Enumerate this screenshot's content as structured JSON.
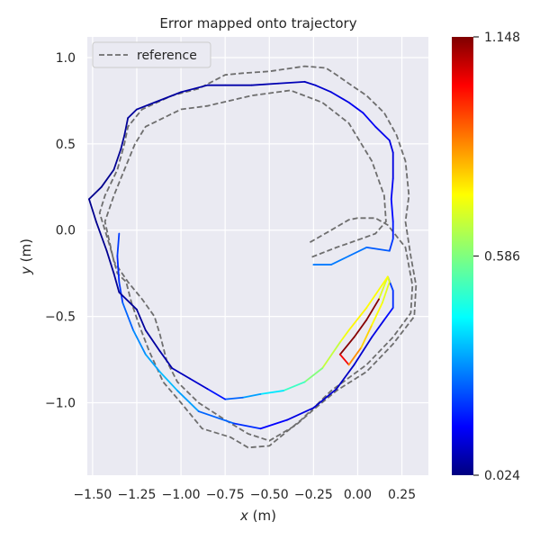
{
  "chart_data": {
    "type": "line",
    "title": "Error mapped onto trajectory",
    "xlabel_var": "x",
    "xlabel_unit": " (m)",
    "ylabel_var": "y",
    "ylabel_unit": " (m)",
    "xlim": [
      -1.53,
      0.4
    ],
    "ylim": [
      -1.42,
      1.12
    ],
    "xticks": [
      -1.5,
      -1.25,
      -1.0,
      -0.75,
      -0.5,
      -0.25,
      0.0,
      0.25
    ],
    "xtick_labels": [
      "−1.50",
      "−1.25",
      "−1.00",
      "−0.75",
      "−0.50",
      "−0.25",
      "0.00",
      "0.25"
    ],
    "yticks": [
      1.0,
      0.5,
      0.0,
      -0.5,
      -1.0
    ],
    "ytick_labels": [
      "1.0",
      "0.5",
      "0.0",
      "−0.5",
      "−1.0"
    ],
    "grid": true,
    "legend": {
      "position": "top-left",
      "entries": [
        "reference"
      ]
    },
    "reference": {
      "name": "reference",
      "style": "dashed",
      "color": "#6e6e6e",
      "points": [
        [
          -0.27,
          -0.07
        ],
        [
          -0.15,
          0.0
        ],
        [
          -0.05,
          0.06
        ],
        [
          0.0,
          0.07
        ],
        [
          0.1,
          0.07
        ],
        [
          0.17,
          0.03
        ],
        [
          0.27,
          -0.1
        ],
        [
          0.31,
          -0.32
        ],
        [
          0.3,
          -0.48
        ],
        [
          0.2,
          -0.62
        ],
        [
          0.05,
          -0.78
        ],
        [
          -0.15,
          -0.93
        ],
        [
          -0.32,
          -1.1
        ],
        [
          -0.5,
          -1.25
        ],
        [
          -0.62,
          -1.26
        ],
        [
          -0.72,
          -1.2
        ],
        [
          -0.88,
          -1.15
        ],
        [
          -1.0,
          -1.0
        ],
        [
          -1.1,
          -0.88
        ],
        [
          -1.18,
          -0.7
        ],
        [
          -1.24,
          -0.54
        ],
        [
          -1.28,
          -0.42
        ],
        [
          -1.31,
          -0.3
        ],
        [
          -1.36,
          -0.25
        ],
        [
          -1.4,
          -0.1
        ],
        [
          -1.46,
          0.1
        ],
        [
          -1.43,
          0.2
        ],
        [
          -1.36,
          0.35
        ],
        [
          -1.32,
          0.5
        ],
        [
          -1.3,
          0.6
        ],
        [
          -1.22,
          0.7
        ],
        [
          -1.05,
          0.78
        ],
        [
          -0.9,
          0.82
        ],
        [
          -0.75,
          0.9
        ],
        [
          -0.65,
          0.91
        ],
        [
          -0.5,
          0.92
        ],
        [
          -0.3,
          0.95
        ],
        [
          -0.18,
          0.94
        ],
        [
          -0.12,
          0.9
        ],
        [
          -0.05,
          0.85
        ],
        [
          0.05,
          0.78
        ],
        [
          0.15,
          0.68
        ],
        [
          0.22,
          0.55
        ],
        [
          0.27,
          0.4
        ],
        [
          0.29,
          0.2
        ],
        [
          0.27,
          0.05
        ],
        [
          0.3,
          -0.15
        ],
        [
          0.33,
          -0.32
        ],
        [
          0.32,
          -0.5
        ],
        [
          0.2,
          -0.66
        ],
        [
          0.05,
          -0.82
        ],
        [
          -0.12,
          -0.93
        ],
        [
          -0.25,
          -1.04
        ],
        [
          -0.35,
          -1.13
        ],
        [
          -0.5,
          -1.22
        ],
        [
          -0.62,
          -1.18
        ],
        [
          -0.75,
          -1.1
        ],
        [
          -0.9,
          -1.0
        ],
        [
          -1.02,
          -0.88
        ],
        [
          -1.08,
          -0.76
        ],
        [
          -1.12,
          -0.6
        ],
        [
          -1.15,
          -0.5
        ],
        [
          -1.22,
          -0.4
        ],
        [
          -1.3,
          -0.3
        ],
        [
          -1.38,
          -0.18
        ],
        [
          -1.43,
          0.05
        ],
        [
          -1.38,
          0.2
        ],
        [
          -1.32,
          0.35
        ],
        [
          -1.26,
          0.5
        ],
        [
          -1.2,
          0.6
        ],
        [
          -1.0,
          0.7
        ],
        [
          -0.85,
          0.72
        ],
        [
          -0.6,
          0.78
        ],
        [
          -0.38,
          0.81
        ],
        [
          -0.2,
          0.74
        ],
        [
          -0.05,
          0.62
        ],
        [
          0.08,
          0.4
        ],
        [
          0.15,
          0.2
        ],
        [
          0.16,
          0.05
        ],
        [
          0.1,
          -0.02
        ],
        [
          0.02,
          -0.05
        ],
        [
          -0.12,
          -0.1
        ],
        [
          -0.27,
          -0.16
        ]
      ]
    },
    "trajectory": {
      "name": "trajectory",
      "points": [
        [
          -1.35,
          -0.02
        ],
        [
          -1.36,
          -0.15
        ],
        [
          -1.35,
          -0.3
        ],
        [
          -1.33,
          -0.42
        ],
        [
          -1.27,
          -0.58
        ],
        [
          -1.2,
          -0.72
        ],
        [
          -1.12,
          -0.82
        ],
        [
          -1.02,
          -0.93
        ],
        [
          -0.9,
          -1.05
        ],
        [
          -0.7,
          -1.12
        ],
        [
          -0.55,
          -1.15
        ],
        [
          -0.4,
          -1.1
        ],
        [
          -0.25,
          -1.03
        ],
        [
          -0.12,
          -0.92
        ],
        [
          -0.02,
          -0.78
        ],
        [
          0.08,
          -0.62
        ],
        [
          0.15,
          -0.52
        ],
        [
          0.2,
          -0.45
        ],
        [
          0.2,
          -0.35
        ],
        [
          0.17,
          -0.27
        ],
        [
          0.12,
          -0.4
        ],
        [
          0.05,
          -0.52
        ],
        [
          -0.02,
          -0.62
        ],
        [
          -0.1,
          -0.72
        ],
        [
          -0.05,
          -0.78
        ],
        [
          0.02,
          -0.68
        ],
        [
          0.08,
          -0.55
        ],
        [
          0.14,
          -0.42
        ],
        [
          0.18,
          -0.3
        ],
        [
          0.17,
          -0.27
        ],
        [
          0.05,
          -0.45
        ],
        [
          -0.05,
          -0.58
        ],
        [
          -0.1,
          -0.65
        ],
        [
          -0.2,
          -0.8
        ],
        [
          -0.3,
          -0.88
        ],
        [
          -0.42,
          -0.93
        ],
        [
          -0.55,
          -0.95
        ],
        [
          -0.65,
          -0.97
        ],
        [
          -0.75,
          -0.98
        ],
        [
          -0.85,
          -0.92
        ],
        [
          -0.95,
          -0.86
        ],
        [
          -1.05,
          -0.8
        ],
        [
          -1.12,
          -0.7
        ],
        [
          -1.2,
          -0.58
        ],
        [
          -1.25,
          -0.46
        ],
        [
          -1.35,
          -0.36
        ],
        [
          -1.38,
          -0.25
        ],
        [
          -1.42,
          -0.12
        ],
        [
          -1.48,
          0.05
        ],
        [
          -1.52,
          0.18
        ],
        [
          -1.45,
          0.25
        ],
        [
          -1.38,
          0.35
        ],
        [
          -1.34,
          0.47
        ],
        [
          -1.32,
          0.55
        ],
        [
          -1.3,
          0.65
        ],
        [
          -1.25,
          0.7
        ],
        [
          -1.15,
          0.74
        ],
        [
          -1.0,
          0.8
        ],
        [
          -0.85,
          0.84
        ],
        [
          -0.75,
          0.84
        ],
        [
          -0.6,
          0.84
        ],
        [
          -0.45,
          0.85
        ],
        [
          -0.3,
          0.86
        ],
        [
          -0.24,
          0.84
        ],
        [
          -0.15,
          0.8
        ],
        [
          -0.05,
          0.74
        ],
        [
          0.03,
          0.68
        ],
        [
          0.1,
          0.6
        ],
        [
          0.18,
          0.52
        ],
        [
          0.2,
          0.45
        ],
        [
          0.2,
          0.3
        ],
        [
          0.19,
          0.18
        ],
        [
          0.2,
          0.05
        ],
        [
          0.2,
          -0.05
        ],
        [
          0.18,
          -0.12
        ],
        [
          0.05,
          -0.1
        ],
        [
          -0.05,
          -0.15
        ],
        [
          -0.15,
          -0.2
        ],
        [
          -0.25,
          -0.2
        ]
      ],
      "error": [
        0.24,
        0.22,
        0.2,
        0.25,
        0.3,
        0.33,
        0.36,
        0.38,
        0.3,
        0.25,
        0.18,
        0.15,
        0.12,
        0.1,
        0.1,
        0.12,
        0.15,
        0.2,
        0.22,
        0.24,
        1.14,
        1.14,
        1.14,
        1.14,
        0.9,
        0.8,
        0.75,
        0.7,
        0.7,
        0.7,
        0.75,
        0.72,
        0.7,
        0.62,
        0.56,
        0.46,
        0.38,
        0.3,
        0.25,
        0.12,
        0.1,
        0.08,
        0.06,
        0.06,
        0.05,
        0.05,
        0.05,
        0.04,
        0.04,
        0.04,
        0.04,
        0.04,
        0.05,
        0.05,
        0.05,
        0.06,
        0.06,
        0.06,
        0.07,
        0.07,
        0.07,
        0.08,
        0.09,
        0.1,
        0.12,
        0.14,
        0.16,
        0.15,
        0.14,
        0.12,
        0.14,
        0.16,
        0.18,
        0.2,
        0.25,
        0.28,
        0.3,
        0.3,
        0.3
      ]
    },
    "colorbar": {
      "cmap": "jet",
      "vmin": 0.024,
      "vmax": 1.148,
      "ticks": [
        1.148,
        0.586,
        0.024
      ],
      "tick_labels": [
        "1.148",
        "0.586",
        "0.024"
      ]
    }
  }
}
